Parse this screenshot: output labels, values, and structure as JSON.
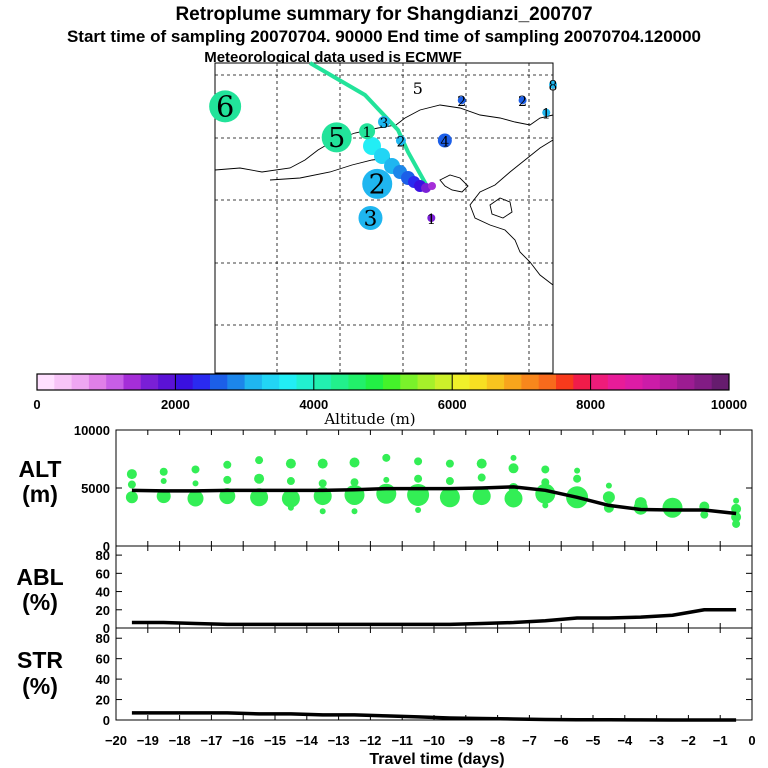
{
  "title_line1": "Retroplume summary for Shangdianzi_200707",
  "title_line2": "Start time of sampling 20070704. 90000     End time of sampling 20070704.120000",
  "title_line3": "Meteorological data used is ECMWF",
  "colors": {
    "track": "#22e39a",
    "curve": "#000000",
    "dot": "#33ee55"
  },
  "map": {
    "labels": [
      {
        "text": "6",
        "lon": 0.03,
        "lat": 0.14,
        "size": 32,
        "color": "#22e39a"
      },
      {
        "text": "5",
        "lon": 0.36,
        "lat": 0.24,
        "size": 30,
        "color": "#22e39a"
      },
      {
        "text": "1",
        "lon": 0.45,
        "lat": 0.22,
        "size": 16,
        "color": "#22e39a"
      },
      {
        "text": "5",
        "lon": 0.6,
        "lat": 0.08,
        "size": 18,
        "color": "#ffffff"
      },
      {
        "text": "2",
        "lon": 0.48,
        "lat": 0.39,
        "size": 30,
        "color": "#1fb6f0"
      },
      {
        "text": "3",
        "lon": 0.46,
        "lat": 0.5,
        "size": 24,
        "color": "#1fb6f0"
      },
      {
        "text": "3",
        "lon": 0.5,
        "lat": 0.19,
        "size": 12,
        "color": "#1fb6f0"
      },
      {
        "text": "2",
        "lon": 0.55,
        "lat": 0.25,
        "size": 10,
        "color": "#1fb6f0"
      },
      {
        "text": "4",
        "lon": 0.68,
        "lat": 0.25,
        "size": 14,
        "color": "#1c5fe8"
      },
      {
        "text": "2",
        "lon": 0.73,
        "lat": 0.12,
        "size": 8,
        "color": "#1c5fe8"
      },
      {
        "text": "2",
        "lon": 0.91,
        "lat": 0.12,
        "size": 8,
        "color": "#1c5fe8"
      },
      {
        "text": "8",
        "lon": 1.0,
        "lat": 0.07,
        "size": 8,
        "color": "#1fb6f0"
      },
      {
        "text": "1",
        "lon": 0.98,
        "lat": 0.16,
        "size": 8,
        "color": "#1fb6f0"
      },
      {
        "text": "1",
        "lon": 0.64,
        "lat": 0.5,
        "size": 8,
        "color": "#7a1fd6"
      }
    ]
  },
  "colorbar": {
    "title": "Altitude (m)",
    "ticks": [
      "0",
      "2000",
      "4000",
      "6000",
      "8000",
      "10000"
    ],
    "colors": [
      "#ffe0ff",
      "#f7c4f7",
      "#eea6f2",
      "#e07fe8",
      "#c75ee6",
      "#a52ed8",
      "#7a1fd6",
      "#5b12d6",
      "#3a10e0",
      "#2a2af0",
      "#1c5fe8",
      "#1c86ea",
      "#1fb6f0",
      "#22d5f5",
      "#22eef5",
      "#22f0d0",
      "#22f0b0",
      "#22f08c",
      "#22f06a",
      "#22f045",
      "#44f22a",
      "#7af22a",
      "#a6f02a",
      "#ccf02a",
      "#f0f02a",
      "#f8df22",
      "#f8c41f",
      "#f8a51c",
      "#f8871c",
      "#f86a1c",
      "#f83a1c",
      "#f01c4a",
      "#ee1c7a",
      "#e81c99",
      "#dd1ca6",
      "#cc1ca8",
      "#b61c9e",
      "#9c1c92",
      "#821c84",
      "#661c6e"
    ]
  },
  "chart_data": [
    {
      "type": "line",
      "panel": "ALT",
      "label_line1": "ALT",
      "label_line2": "(m)",
      "x": [
        -19.5,
        -18.5,
        -17.5,
        -16.5,
        -15.5,
        -14.5,
        -13.5,
        -12.5,
        -11.5,
        -10.5,
        -9.5,
        -8.5,
        -7.5,
        -6.5,
        -5.5,
        -4.5,
        -3.5,
        -2.5,
        -1.5,
        -0.5
      ],
      "values": [
        4800,
        4750,
        4750,
        4800,
        4800,
        4800,
        4800,
        4850,
        4950,
        4950,
        4950,
        5000,
        5100,
        4800,
        4200,
        3500,
        3150,
        3100,
        3100,
        2800
      ],
      "ylim": [
        0,
        10000
      ],
      "yticks": [
        "0",
        "5000",
        "10000"
      ],
      "dots": [
        [
          -19.5,
          6200,
          5
        ],
        [
          -19.5,
          5300,
          4
        ],
        [
          -19.5,
          4200,
          6
        ],
        [
          -18.5,
          6400,
          4
        ],
        [
          -18.5,
          5600,
          3
        ],
        [
          -18.5,
          4300,
          7
        ],
        [
          -17.5,
          6600,
          4
        ],
        [
          -17.5,
          5400,
          3
        ],
        [
          -17.5,
          4100,
          8
        ],
        [
          -16.5,
          7000,
          4
        ],
        [
          -16.5,
          5700,
          4
        ],
        [
          -16.5,
          4300,
          8
        ],
        [
          -15.5,
          7400,
          4
        ],
        [
          -15.5,
          5800,
          5
        ],
        [
          -15.5,
          4200,
          9
        ],
        [
          -14.5,
          7100,
          5
        ],
        [
          -14.5,
          5600,
          4
        ],
        [
          -14.5,
          4100,
          9
        ],
        [
          -14.5,
          3300,
          3
        ],
        [
          -13.5,
          7100,
          5
        ],
        [
          -13.5,
          5400,
          4
        ],
        [
          -13.5,
          4300,
          9
        ],
        [
          -13.5,
          3000,
          3
        ],
        [
          -12.5,
          7200,
          5
        ],
        [
          -12.5,
          5500,
          4
        ],
        [
          -12.5,
          4400,
          10
        ],
        [
          -12.5,
          3000,
          3
        ],
        [
          -11.5,
          7600,
          4
        ],
        [
          -11.5,
          5700,
          3
        ],
        [
          -11.5,
          4500,
          10
        ],
        [
          -10.5,
          7300,
          4
        ],
        [
          -10.5,
          5800,
          4
        ],
        [
          -10.5,
          4400,
          11
        ],
        [
          -10.5,
          3100,
          3
        ],
        [
          -9.5,
          7100,
          4
        ],
        [
          -9.5,
          5600,
          4
        ],
        [
          -9.5,
          4200,
          10
        ],
        [
          -8.5,
          7100,
          5
        ],
        [
          -8.5,
          5900,
          4
        ],
        [
          -8.5,
          4300,
          9
        ],
        [
          -7.5,
          7600,
          3
        ],
        [
          -7.5,
          6700,
          5
        ],
        [
          -7.5,
          5000,
          5
        ],
        [
          -7.5,
          4100,
          9
        ],
        [
          -6.5,
          6600,
          4
        ],
        [
          -6.5,
          5500,
          4
        ],
        [
          -6.5,
          4500,
          10
        ],
        [
          -6.5,
          3500,
          3
        ],
        [
          -5.5,
          6500,
          3
        ],
        [
          -5.5,
          5800,
          4
        ],
        [
          -5.5,
          4200,
          11
        ],
        [
          -4.5,
          5200,
          3
        ],
        [
          -4.5,
          4200,
          6
        ],
        [
          -4.5,
          3300,
          5
        ],
        [
          -3.5,
          3700,
          6
        ],
        [
          -3.5,
          3300,
          7
        ],
        [
          -2.5,
          3300,
          10
        ],
        [
          -1.5,
          3400,
          5
        ],
        [
          -1.5,
          2700,
          4
        ],
        [
          -0.5,
          3900,
          3
        ],
        [
          -0.5,
          3200,
          5
        ],
        [
          -0.5,
          2500,
          5
        ],
        [
          -0.5,
          1900,
          4
        ]
      ]
    },
    {
      "type": "line",
      "panel": "ABL",
      "label_line1": "ABL",
      "label_line2": "(%)",
      "x": [
        -19.5,
        -18.5,
        -17.5,
        -16.5,
        -15.5,
        -14.5,
        -13.5,
        -12.5,
        -11.5,
        -10.5,
        -9.5,
        -8.5,
        -7.5,
        -6.5,
        -5.5,
        -4.5,
        -3.5,
        -2.5,
        -1.5,
        -0.5
      ],
      "values": [
        6,
        6,
        5,
        4,
        4,
        4,
        4,
        4,
        4,
        4,
        4,
        5,
        6,
        8,
        11,
        11,
        12,
        14,
        20,
        20
      ],
      "ylim": [
        0,
        90
      ],
      "yticks": [
        "0",
        "20",
        "40",
        "60",
        "80"
      ]
    },
    {
      "type": "line",
      "panel": "STR",
      "label_line1": "STR",
      "label_line2": "(%)",
      "x": [
        -19.5,
        -18.5,
        -17.5,
        -16.5,
        -15.5,
        -14.5,
        -13.5,
        -12.5,
        -11.5,
        -10.5,
        -9.5,
        -8.5,
        -7.5,
        -6.5,
        -5.5,
        -4.5,
        -3.5,
        -2.5,
        -1.5,
        -0.5
      ],
      "values": [
        7,
        7,
        7,
        7,
        6,
        6,
        5,
        5,
        4,
        3,
        2,
        1.5,
        1,
        0.5,
        0.3,
        0.2,
        0.1,
        0,
        0,
        0
      ],
      "ylim": [
        0,
        90
      ],
      "yticks": [
        "0",
        "20",
        "40",
        "60",
        "80"
      ]
    }
  ],
  "xaxis": {
    "label": "Travel time (days)",
    "ticks": [
      "−20",
      "−19",
      "−18",
      "−17",
      "−16",
      "−15",
      "−14",
      "−13",
      "−12",
      "−11",
      "−10",
      "−9",
      "−8",
      "−7",
      "−6",
      "−5",
      "−4",
      "−3",
      "−2",
      "−1",
      "0"
    ]
  }
}
